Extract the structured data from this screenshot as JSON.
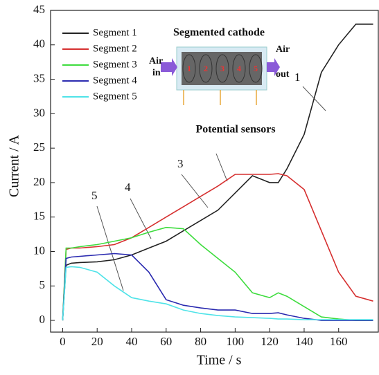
{
  "chart_data": {
    "type": "line",
    "x_label": "Time / s",
    "y_label": "Current / A",
    "x": [
      0,
      2,
      5,
      10,
      20,
      30,
      40,
      50,
      60,
      70,
      80,
      90,
      100,
      110,
      120,
      125,
      130,
      140,
      150,
      160,
      170,
      180
    ],
    "series": [
      {
        "name": "Segment 1",
        "color": "#222222",
        "values": [
          0,
          8,
          8.3,
          8.4,
          8.5,
          8.8,
          9.5,
          10.5,
          11.5,
          13,
          14.5,
          16,
          18.5,
          21,
          20,
          20,
          22,
          27,
          36,
          40,
          43,
          43
        ]
      },
      {
        "name": "Segment 2",
        "color": "#d62f2f",
        "values": [
          0,
          10.3,
          10.5,
          10.5,
          10.7,
          11,
          12,
          13.5,
          15,
          16.5,
          18,
          19.5,
          21.2,
          21.2,
          21.2,
          21.3,
          21,
          19,
          13,
          7,
          3.5,
          2.8
        ]
      },
      {
        "name": "Segment 3",
        "color": "#3ddc3d",
        "values": [
          0,
          10.5,
          10.5,
          10.7,
          11,
          11.5,
          12,
          12.8,
          13.5,
          13.3,
          11,
          9,
          7,
          4,
          3.3,
          4,
          3.5,
          2,
          0.5,
          0.2,
          0,
          0
        ]
      },
      {
        "name": "Segment 4",
        "color": "#2a2ab0",
        "values": [
          0,
          9,
          9.2,
          9.3,
          9.5,
          9.7,
          9.5,
          7,
          3,
          2.2,
          1.8,
          1.5,
          1.5,
          1,
          1,
          1.1,
          0.8,
          0.3,
          0,
          0,
          0,
          0
        ]
      },
      {
        "name": "Segment 5",
        "color": "#4fe3e8",
        "values": [
          0,
          7.7,
          7.8,
          7.7,
          7,
          5,
          3.3,
          2.8,
          2.4,
          1.5,
          1,
          0.7,
          0.5,
          0.4,
          0.3,
          0.2,
          0.2,
          0.1,
          0.1,
          0.1,
          0.1,
          0.1
        ]
      }
    ],
    "xlim": [
      -7,
      183
    ],
    "ylim": [
      -1.7,
      45
    ],
    "xticks": [
      0,
      20,
      40,
      60,
      80,
      100,
      120,
      140,
      160
    ],
    "yticks": [
      0,
      5,
      10,
      15,
      20,
      25,
      30,
      35,
      40,
      45
    ],
    "grid": false,
    "annotations": [
      "1",
      "3",
      "4",
      "5"
    ],
    "inset": {
      "title": "Segmented cathode",
      "air_in": [
        "Air",
        "in"
      ],
      "air_out": [
        "Air",
        "out"
      ],
      "cells": [
        "1",
        "2",
        "3",
        "4",
        "5"
      ],
      "sensors": "Potential sensors"
    }
  }
}
